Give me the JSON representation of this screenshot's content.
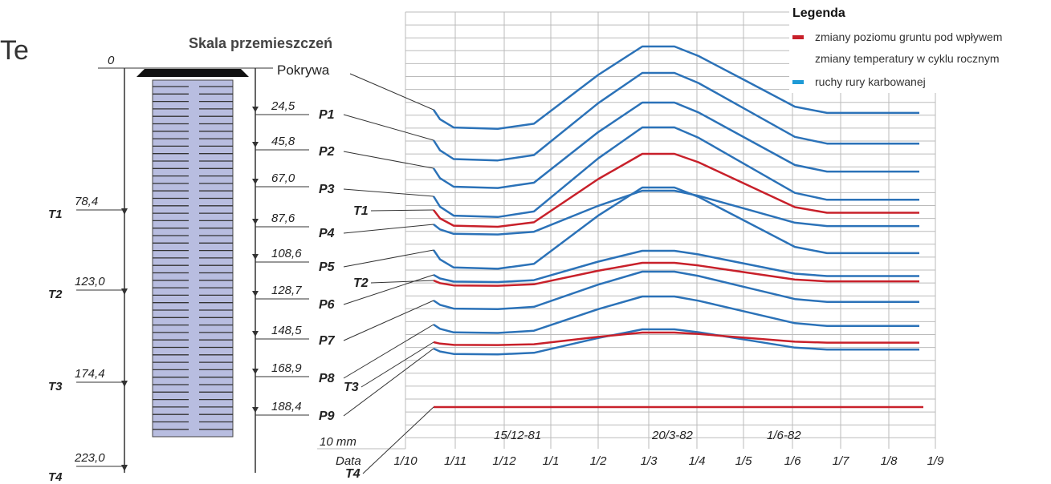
{
  "title": "Te",
  "scale": {
    "title": "Skala przemieszczeń",
    "zero": "0",
    "cover": "Pokrywa",
    "points": [
      {
        "label": "P1",
        "depth": "24,5"
      },
      {
        "label": "P2",
        "depth": "45,8"
      },
      {
        "label": "P3",
        "depth": "67,0"
      },
      {
        "label": "P4",
        "depth": "87,6"
      },
      {
        "label": "P5",
        "depth": "108,6"
      },
      {
        "label": "P6",
        "depth": "128,7"
      },
      {
        "label": "P7",
        "depth": "148,5"
      },
      {
        "label": "P8",
        "depth": "168,9"
      },
      {
        "label": "P9",
        "depth": "188,4"
      }
    ]
  },
  "sensors": [
    {
      "label": "T1",
      "depth": "78,4"
    },
    {
      "label": "T2",
      "depth": "123,0"
    },
    {
      "label": "T3",
      "depth": "174,4"
    },
    {
      "label": "T4",
      "depth": "223,0"
    }
  ],
  "legend": {
    "title": "Legenda",
    "items": [
      {
        "lines": [
          "zmiany poziomu gruntu pod wpływem",
          "zmiany temperatury w cyklu rocznym"
        ]
      },
      {
        "lines": [
          "ruchy rury karbowanej"
        ]
      }
    ]
  },
  "axis": {
    "label": "Data",
    "dates": [
      "1/10",
      "1/11",
      "1/12",
      "1/1",
      "1/2",
      "1/3",
      "1/4",
      "1/5",
      "1/6",
      "1/7",
      "1/8",
      "1/9"
    ],
    "scale_label": "10 mm",
    "marked_dates": [
      "15/12-81",
      "20/3-82",
      "1/6-82"
    ]
  }
}
